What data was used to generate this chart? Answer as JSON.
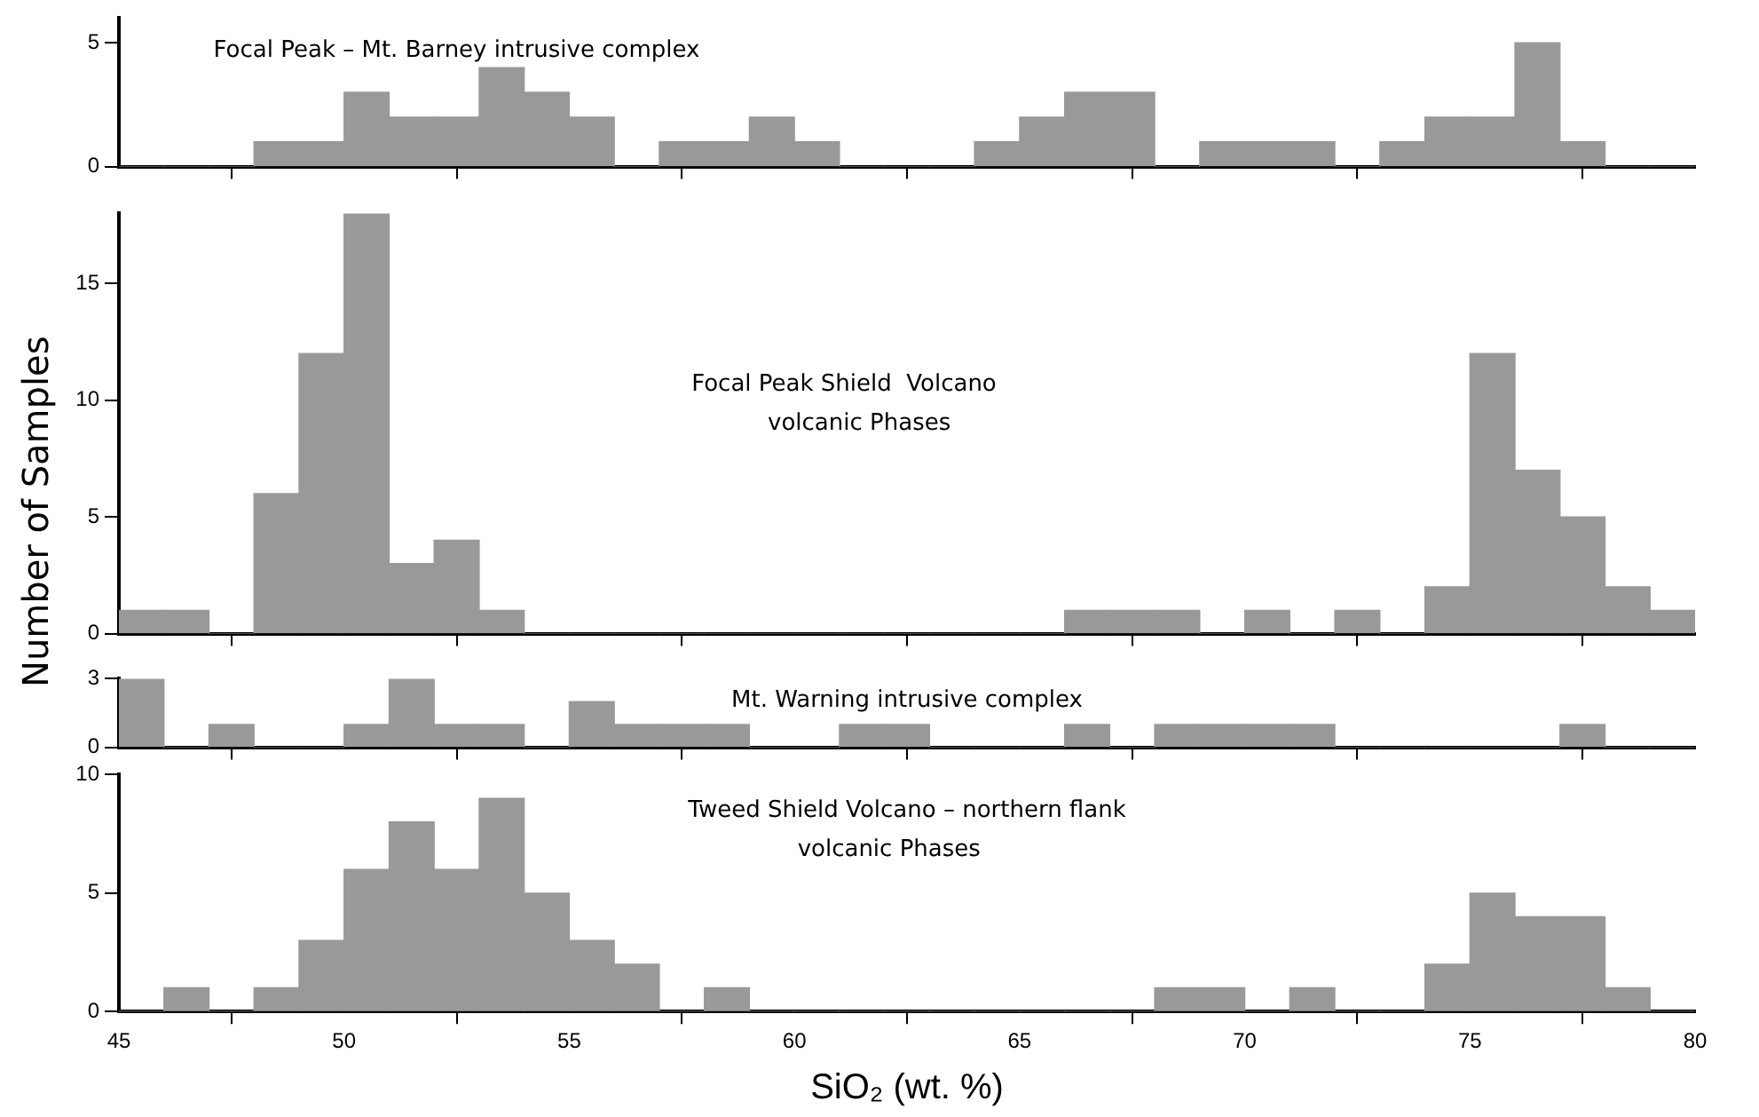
{
  "chart_data": [
    {
      "type": "histogram",
      "title": "Focal Peak – Mt. Barney intrusive complex",
      "bins": [
        45,
        46,
        47,
        48,
        49,
        50,
        51,
        52,
        53,
        54,
        55,
        56,
        57,
        58,
        59,
        60,
        61,
        62,
        63,
        64,
        65,
        66,
        67,
        68,
        69,
        70,
        71,
        72,
        73,
        74,
        75,
        76,
        77,
        78,
        79,
        80
      ],
      "values": [
        0,
        0,
        0,
        1,
        1,
        3,
        2,
        2,
        4,
        3,
        2,
        0,
        1,
        1,
        2,
        1,
        0,
        0,
        0,
        1,
        2,
        3,
        3,
        0,
        1,
        1,
        1,
        0,
        1,
        2,
        2,
        5,
        1,
        0,
        0
      ],
      "color": "#999999",
      "xlim": [
        45,
        80
      ],
      "xticks": [
        45,
        50,
        55,
        60,
        65,
        70,
        75,
        80
      ],
      "ylim": [
        0,
        6
      ],
      "yticks": [
        0,
        5
      ],
      "tick_labels": "y"
    },
    {
      "type": "histogram",
      "title": "Focal Peak Shield  Volcano",
      "subtitle": "volcanic Phases",
      "ylabel": "Number  of  Samples",
      "bins": [
        45,
        46,
        47,
        48,
        49,
        50,
        51,
        52,
        53,
        54,
        55,
        56,
        57,
        58,
        59,
        60,
        61,
        62,
        63,
        64,
        65,
        66,
        67,
        68,
        69,
        70,
        71,
        72,
        73,
        74,
        75,
        76,
        77,
        78,
        79,
        80
      ],
      "values": [
        1,
        1,
        0,
        6,
        12,
        18,
        3,
        4,
        1,
        0,
        0,
        0,
        0,
        0,
        0,
        0,
        0,
        0,
        0,
        0,
        0,
        1,
        1,
        1,
        0,
        1,
        0,
        1,
        0,
        2,
        12,
        7,
        5,
        2,
        1
      ],
      "color": "#999999",
      "xlim": [
        45,
        80
      ],
      "xticks": [
        45,
        50,
        55,
        60,
        65,
        70,
        75,
        80
      ],
      "ylim": [
        0,
        18
      ],
      "yticks": [
        0,
        5,
        10,
        15
      ],
      "tick_labels": "y"
    },
    {
      "type": "histogram",
      "title": "Mt. Warning intrusive complex",
      "bins": [
        45,
        46,
        47,
        48,
        49,
        50,
        51,
        52,
        53,
        54,
        55,
        56,
        57,
        58,
        59,
        60,
        61,
        62,
        63,
        64,
        65,
        66,
        67,
        68,
        69,
        70,
        71,
        72,
        73,
        74,
        75,
        76,
        77,
        78,
        79,
        80
      ],
      "values": [
        3,
        0,
        1,
        0,
        0,
        1,
        3,
        1,
        1,
        0,
        2,
        1,
        1,
        1,
        0,
        0,
        1,
        1,
        0,
        0,
        0,
        1,
        0,
        1,
        1,
        1,
        1,
        0,
        0,
        0,
        0,
        0,
        1,
        0,
        0
      ],
      "color": "#999999",
      "xlim": [
        45,
        80
      ],
      "xticks": [
        45,
        50,
        55,
        60,
        65,
        70,
        75,
        80
      ],
      "ylim": [
        0,
        3
      ],
      "yticks": [
        0,
        3
      ],
      "tick_labels": "y"
    },
    {
      "type": "histogram",
      "title": "Tweed Shield Volcano – northern flank",
      "subtitle": "volcanic Phases",
      "xlabel": "SiO₂ (wt. %)",
      "bins": [
        45,
        46,
        47,
        48,
        49,
        50,
        51,
        52,
        53,
        54,
        55,
        56,
        57,
        58,
        59,
        60,
        61,
        62,
        63,
        64,
        65,
        66,
        67,
        68,
        69,
        70,
        71,
        72,
        73,
        74,
        75,
        76,
        77,
        78,
        79,
        80
      ],
      "values": [
        0,
        1,
        0,
        1,
        3,
        6,
        8,
        6,
        9,
        5,
        3,
        2,
        0,
        1,
        0,
        0,
        0,
        0,
        0,
        0,
        0,
        0,
        0,
        1,
        1,
        0,
        1,
        0,
        0,
        2,
        5,
        4,
        4,
        1,
        0
      ],
      "color": "#999999",
      "xlim": [
        45,
        80
      ],
      "xticks": [
        45,
        50,
        55,
        60,
        65,
        70,
        75,
        80
      ],
      "ylim": [
        0,
        10
      ],
      "yticks": [
        0,
        5,
        10
      ]
    }
  ]
}
